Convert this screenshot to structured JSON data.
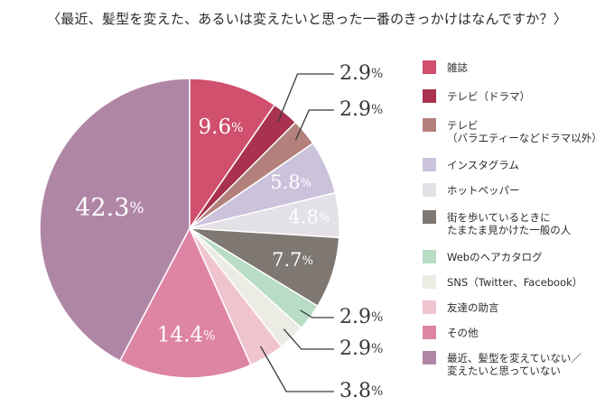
{
  "title": "〈最近、髪型を変えた、あるいは変えたいと思った一番のきっかけはなんですか？〉",
  "chart_data": {
    "type": "pie",
    "title": "〈最近、髪型を変えた、あるいは変えたいと思った一番のきっかけはなんですか？〉",
    "start": "12 o'clock, clockwise",
    "legend_position": "right",
    "slices": [
      {
        "label": "雑誌",
        "value": 9.6,
        "color": "#d0506e",
        "label_placement": "inside"
      },
      {
        "label": "テレビ（ドラマ）",
        "value": 2.9,
        "color": "#a8324f",
        "label_placement": "outside"
      },
      {
        "label": "テレビ\n（バラエティーなどドラマ以外）",
        "value": 2.9,
        "color": "#b4807c",
        "label_placement": "outside"
      },
      {
        "label": "インスタグラム",
        "value": 5.8,
        "color": "#cbc3dc",
        "label_placement": "inside"
      },
      {
        "label": "ホットペッパー",
        "value": 4.8,
        "color": "#e3e0e6",
        "label_placement": "inside"
      },
      {
        "label": "街を歩いているときに\nたまたま見かけた一般の人",
        "value": 7.7,
        "color": "#7e7772",
        "label_placement": "inside"
      },
      {
        "label": "Webのヘアカタログ",
        "value": 2.9,
        "color": "#b8dcc4",
        "label_placement": "outside"
      },
      {
        "label": "SNS（Twitter、Facebook）",
        "value": 2.9,
        "color": "#ecebe4",
        "label_placement": "outside"
      },
      {
        "label": "友達の助言",
        "value": 3.8,
        "color": "#f0c4cf",
        "label_placement": "outside"
      },
      {
        "label": "その他",
        "value": 14.4,
        "color": "#de84a4",
        "label_placement": "inside"
      },
      {
        "label": "最近、髪型を変えていない／\n変えたいと思っていない",
        "value": 42.3,
        "color": "#b086a6",
        "label_placement": "inside"
      }
    ],
    "value_suffix": "%"
  }
}
